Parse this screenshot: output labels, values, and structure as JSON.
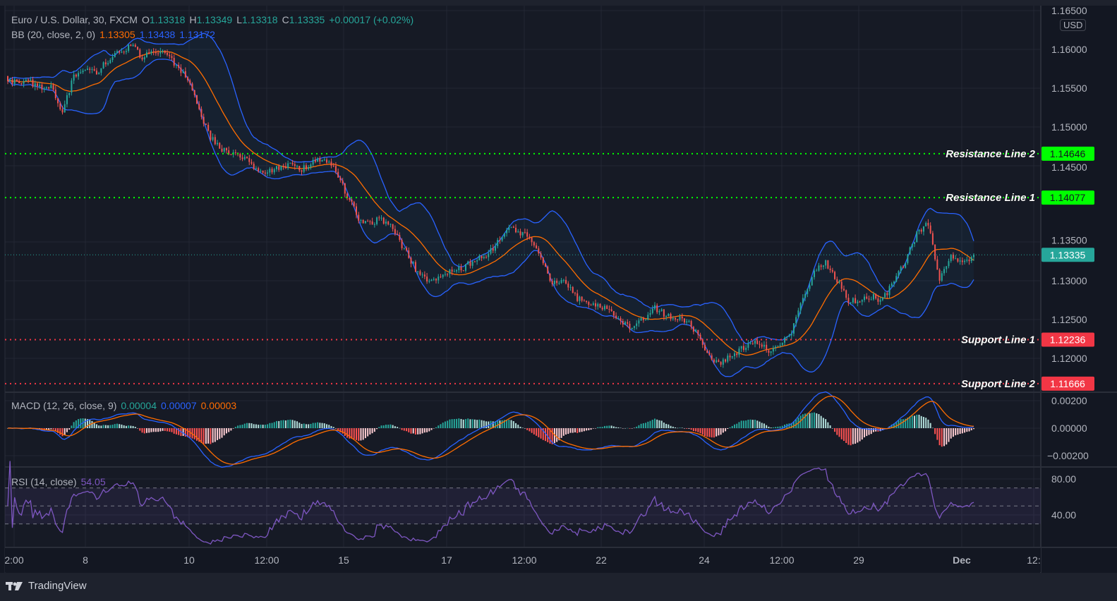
{
  "legend": {
    "symbol": "Euro / U.S. Dollar, 30, FXCM",
    "o_label": "O",
    "o": "1.13318",
    "h_label": "H",
    "h": "1.13349",
    "l_label": "L",
    "l": "1.13318",
    "c_label": "C",
    "c": "1.13335",
    "change": "+0.00017 (+0.02%)",
    "bb_name": "BB (20, close, 2, 0)",
    "bb_basis": "1.13305",
    "bb_upper": "1.13438",
    "bb_lower": "1.13172",
    "macd_name": "MACD (12, 26, close, 9)",
    "macd_hist": "0.00004",
    "macd_line": "0.00007",
    "macd_signal": "0.00003",
    "rsi_name": "RSI (14, close)",
    "rsi_value": "54.05"
  },
  "currency": "USD",
  "brand": "TradingView",
  "colors": {
    "up": "#26a69a",
    "down": "#ef5350",
    "bb_band": "#2962ff",
    "bb_basis": "#ff6d00",
    "macd": "#2962ff",
    "signal": "#ff6d00",
    "rsi": "#7e57c2",
    "resistance": "#00ff00",
    "support": "#f23645",
    "last": "#26a69a"
  },
  "chart_data": {
    "type": "candlestick",
    "price_ticks": [
      "1.16500",
      "1.16000",
      "1.15500",
      "1.15000",
      "1.14500",
      "1.13500",
      "1.13000",
      "1.12500",
      "1.12000"
    ],
    "ylim": [
      1.115,
      1.165
    ],
    "time_labels": [
      "2:00",
      "8",
      "10",
      "12:00",
      "15",
      "17",
      "12:00",
      "22",
      "24",
      "12:00",
      "29",
      "Dec",
      "12:"
    ],
    "closes": [
      1.1565,
      1.1555,
      1.1558,
      1.1552,
      1.155,
      1.152,
      1.1565,
      1.1575,
      1.157,
      1.1585,
      1.1595,
      1.1605,
      1.159,
      1.1595,
      1.1595,
      1.158,
      1.156,
      1.152,
      1.1485,
      1.147,
      1.1465,
      1.146,
      1.1445,
      1.144,
      1.1445,
      1.145,
      1.1445,
      1.1455,
      1.146,
      1.1445,
      1.141,
      1.138,
      1.1375,
      1.138,
      1.137,
      1.134,
      1.1315,
      1.13,
      1.1305,
      1.1315,
      1.1315,
      1.1325,
      1.133,
      1.1345,
      1.137,
      1.1365,
      1.1355,
      1.133,
      1.1295,
      1.13,
      1.128,
      1.127,
      1.127,
      1.126,
      1.1245,
      1.124,
      1.125,
      1.1265,
      1.1255,
      1.125,
      1.1245,
      1.1225,
      1.1195,
      1.1195,
      1.1205,
      1.1215,
      1.122,
      1.121,
      1.1215,
      1.1235,
      1.128,
      1.131,
      1.1325,
      1.13,
      1.1275,
      1.1275,
      1.128,
      1.1275,
      1.13,
      1.1325,
      1.136,
      1.1375,
      1.13,
      1.1335,
      1.132,
      1.13335
    ],
    "levels": [
      {
        "label": "Resistance Line 2",
        "value": "1.14646",
        "kind": "resistance"
      },
      {
        "label": "Resistance Line 1",
        "value": "1.14077",
        "kind": "resistance"
      },
      {
        "label": "Support Line 1",
        "value": "1.12236",
        "kind": "support"
      },
      {
        "label": "Support Line 2",
        "value": "1.11666",
        "kind": "support"
      }
    ],
    "last_price": "1.13335",
    "macd_ticks": [
      "0.00200",
      "0.00000",
      "−0.00200"
    ],
    "rsi_ticks": [
      "80.00",
      "40.00"
    ],
    "rsi_bands": [
      70,
      50,
      30
    ]
  }
}
